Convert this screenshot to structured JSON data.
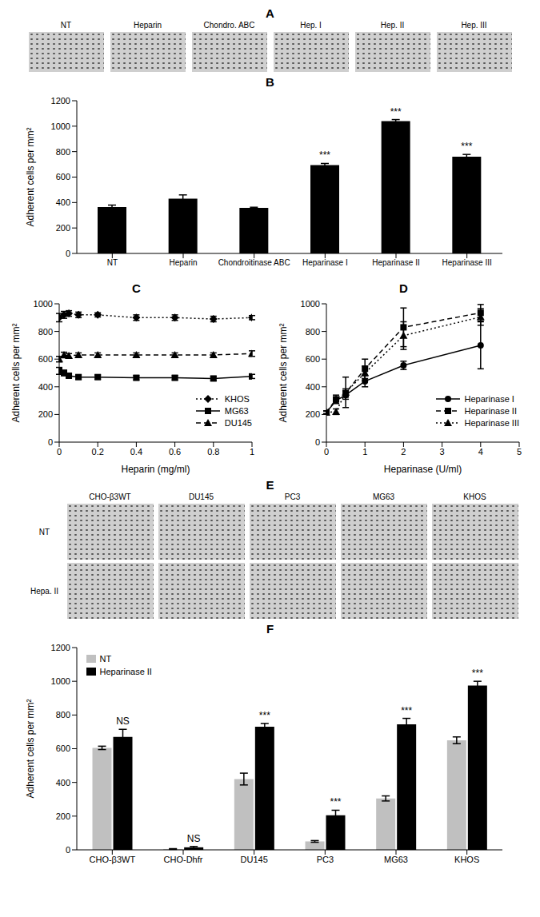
{
  "chart_data": [
    {
      "type": "image",
      "panel": "A",
      "columns": [
        "NT",
        "Heparin",
        "Chondro. ABC",
        "Hep. I",
        "Hep. II",
        "Hep. III"
      ]
    },
    {
      "type": "bar",
      "panel": "B",
      "categories": [
        "NT",
        "Heparin",
        "Chondroitinase ABC",
        "Heparinase I",
        "Heparinase II",
        "Heparinase III"
      ],
      "values": [
        365,
        430,
        358,
        695,
        1040,
        760
      ],
      "errors": [
        15,
        30,
        5,
        12,
        12,
        18
      ],
      "annotations": [
        null,
        null,
        null,
        "***",
        "***",
        "***"
      ],
      "color": "#000000",
      "ylabel": "Adherent cells per mm²",
      "ylim": [
        0,
        1200
      ],
      "yticks": [
        0,
        200,
        400,
        600,
        800,
        1000,
        1200
      ]
    },
    {
      "type": "line",
      "panel": "C",
      "xlabel": "Heparin (mg/ml)",
      "ylabel": "Adherent cells per mm²",
      "x": [
        0,
        0.025,
        0.05,
        0.1,
        0.2,
        0.4,
        0.6,
        0.8,
        1
      ],
      "xlim": [
        0,
        1
      ],
      "xticks": [
        0,
        0.2,
        0.4,
        0.6,
        0.8,
        1
      ],
      "ylim": [
        0,
        1000
      ],
      "yticks": [
        0,
        200,
        400,
        600,
        800,
        1000
      ],
      "legend": "lower right",
      "series": [
        {
          "name": "KHOS",
          "color": "#000000",
          "marker": "diamond",
          "line_style": "dotted",
          "values": [
            900,
            920,
            930,
            920,
            920,
            900,
            900,
            890,
            900
          ],
          "errors": [
            30,
            25,
            20,
            20,
            15,
            20,
            20,
            20,
            15
          ]
        },
        {
          "name": "MG63",
          "color": "#000000",
          "marker": "square",
          "line_style": "solid",
          "values": [
            515,
            500,
            480,
            470,
            470,
            465,
            465,
            460,
            475
          ],
          "errors": [
            25,
            20,
            15,
            15,
            15,
            15,
            15,
            15,
            15
          ]
        },
        {
          "name": "DU145",
          "color": "#000000",
          "marker": "triangle",
          "line_style": "dashed",
          "values": [
            600,
            630,
            625,
            630,
            630,
            630,
            630,
            630,
            640
          ],
          "errors": [
            20,
            20,
            15,
            15,
            15,
            15,
            15,
            15,
            20
          ]
        }
      ]
    },
    {
      "type": "line",
      "panel": "D",
      "xlabel": "Heparinase (U/ml)",
      "ylabel": "Adherent cells per mm²",
      "x": [
        0,
        0.25,
        0.5,
        1,
        2,
        4
      ],
      "xlim": [
        0,
        5
      ],
      "xticks": [
        0,
        1,
        2,
        3,
        4,
        5
      ],
      "ylim": [
        0,
        1000
      ],
      "yticks": [
        0,
        200,
        400,
        600,
        800,
        1000
      ],
      "legend": "lower right",
      "series": [
        {
          "name": "Heparinase I",
          "color": "#000000",
          "marker": "circle",
          "line_style": "solid",
          "values": [
            215,
            300,
            340,
            440,
            555,
            700
          ],
          "errors": [
            10,
            20,
            30,
            40,
            30,
            170
          ]
        },
        {
          "name": "Heparinase II",
          "color": "#000000",
          "marker": "square",
          "line_style": "dashed",
          "values": [
            215,
            310,
            355,
            530,
            830,
            935
          ],
          "errors": [
            10,
            30,
            30,
            70,
            140,
            60
          ]
        },
        {
          "name": "Heparinase III",
          "color": "#000000",
          "marker": "triangle",
          "line_style": "dotted",
          "values": [
            215,
            220,
            360,
            500,
            770,
            905
          ],
          "errors": [
            10,
            20,
            110,
            50,
            100,
            60
          ]
        }
      ]
    },
    {
      "type": "image",
      "panel": "E",
      "columns": [
        "CHO-β3WT",
        "DU145",
        "PC3",
        "MG63",
        "KHOS"
      ],
      "rows": [
        "NT",
        "Hepa. II"
      ]
    },
    {
      "type": "bar",
      "panel": "F",
      "categories": [
        "CHO-β3WT",
        "CHO-Dhfr",
        "DU145",
        "PC3",
        "MG63",
        "KHOS"
      ],
      "ylabel": "Adherent cells per mm²",
      "ylim": [
        0,
        1200
      ],
      "yticks": [
        0,
        200,
        400,
        600,
        800,
        1000,
        1200
      ],
      "legend": "upper left",
      "annotations": [
        "NS",
        "NS",
        "***",
        "***",
        "***",
        "***"
      ],
      "series": [
        {
          "name": "NT",
          "color": "#c0c0c0",
          "values": [
            605,
            5,
            420,
            50,
            305,
            650
          ],
          "errors": [
            10,
            2,
            35,
            5,
            15,
            20
          ]
        },
        {
          "name": "Heparinase II",
          "color": "#000000",
          "values": [
            670,
            15,
            730,
            205,
            745,
            975
          ],
          "errors": [
            45,
            5,
            20,
            30,
            35,
            25
          ]
        }
      ]
    }
  ]
}
